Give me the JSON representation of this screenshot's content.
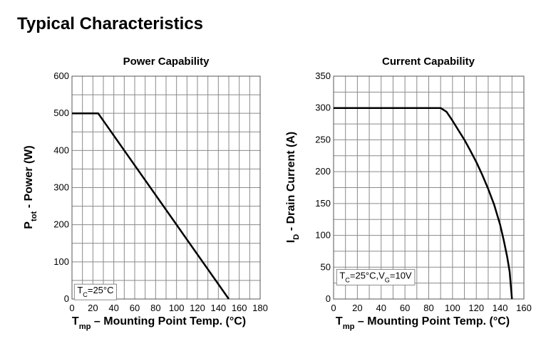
{
  "page": {
    "title": "Typical Characteristics"
  },
  "chart_data": [
    {
      "type": "line",
      "title": "Power Capability",
      "ylabel": {
        "main": "P",
        "sub": "tot",
        "rest": " - Power (W)"
      },
      "xlabel": {
        "main": "T",
        "sub": "mp",
        "rest": " – Mounting Point Temp.  (°C)"
      },
      "xlim": [
        0,
        180
      ],
      "ylim": [
        0,
        600
      ],
      "xticks": [
        0,
        20,
        40,
        60,
        80,
        100,
        120,
        140,
        160,
        180
      ],
      "yticks": [
        0,
        100,
        200,
        300,
        400,
        500,
        600
      ],
      "xminor": 10,
      "yminor": 50,
      "grid": true,
      "annotation": {
        "main": "T",
        "sub": "C",
        "rest": "=25°C",
        "at": [
          5,
          15
        ]
      },
      "series": [
        {
          "x": [
            0,
            25,
            150
          ],
          "y": [
            500,
            500,
            0
          ]
        }
      ]
    },
    {
      "type": "line",
      "title": "Current Capability",
      "ylabel": {
        "main": "I",
        "sub": "D",
        "rest": " - Drain Current (A)"
      },
      "xlabel": {
        "main": "T",
        "sub": "mp",
        "rest": " – Mounting Point Temp.  (°C)"
      },
      "xlim": [
        0,
        160
      ],
      "ylim": [
        0,
        350
      ],
      "xticks": [
        0,
        20,
        40,
        60,
        80,
        100,
        120,
        140,
        160
      ],
      "yticks": [
        0,
        50,
        100,
        150,
        200,
        250,
        300,
        350
      ],
      "xminor": 10,
      "yminor": 25,
      "grid": true,
      "annotation": {
        "text": "T_C=25°C,V_G=10V",
        "at": [
          5,
          32
        ]
      },
      "series": [
        {
          "x": [
            0,
            90,
            95,
            100,
            105,
            110,
            115,
            120,
            125,
            130,
            135,
            140,
            143,
            146,
            148,
            149,
            150
          ],
          "y": [
            300,
            300,
            294,
            280,
            265,
            250,
            233,
            215,
            195,
            173,
            148,
            117,
            93,
            66,
            43,
            22,
            0
          ]
        }
      ]
    }
  ]
}
